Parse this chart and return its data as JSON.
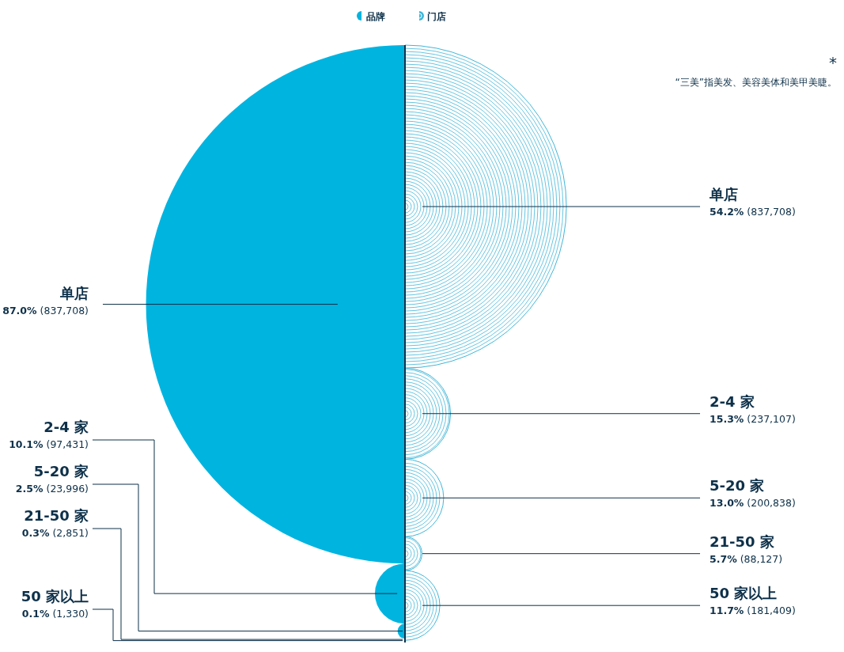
{
  "chart_data": {
    "type": "other",
    "categories": [
      "单店",
      "2-4 家",
      "5-20 家",
      "21-50 家",
      "50 家以上"
    ],
    "legend": "top",
    "series": [
      {
        "name": "品牌",
        "color": "#00b4e0",
        "values": [
          87.0,
          10.1,
          2.5,
          0.3,
          0.1
        ],
        "value_labels": [
          "87.0% (837,708)",
          "10.1% (97,431)",
          "2.5% (23,996)",
          "0.3% (2,851)",
          "0.1% (1,330)"
        ]
      },
      {
        "name": "门店",
        "color": "#3fb6d8",
        "values": [
          54.2,
          15.3,
          13.0,
          5.7,
          11.7
        ],
        "value_labels": [
          "54.2% (837,708)",
          "15.3% (237,107)",
          "13.0% (200,838)",
          "5.7% (88,127)",
          "11.7% (181,409)"
        ]
      }
    ],
    "annotations": [
      "*",
      "“三美”指美发、美容美体和美甲美睫。"
    ]
  }
}
